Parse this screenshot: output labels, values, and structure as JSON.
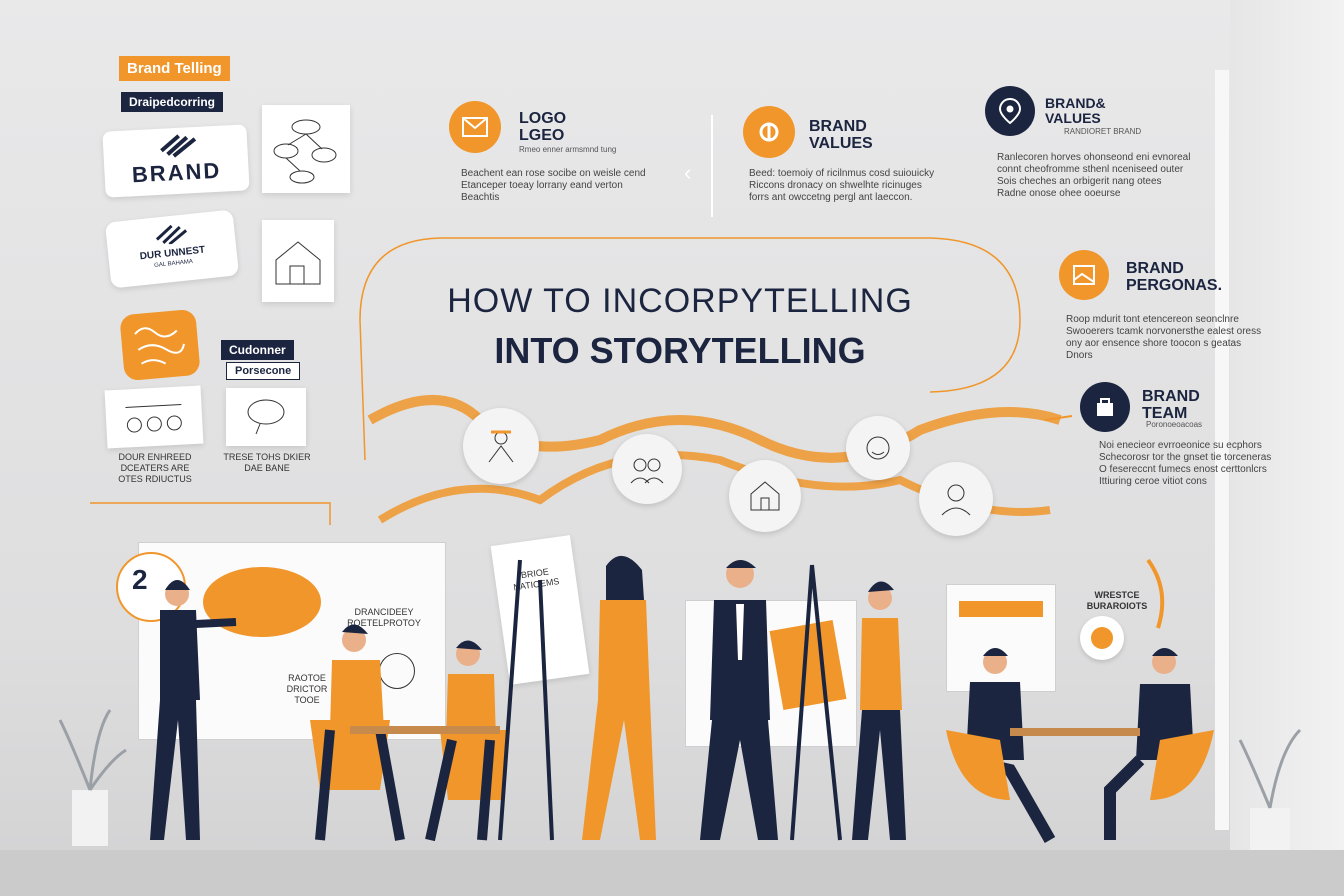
{
  "left_panel": {
    "tag_brand_telling": "Brand Telling",
    "tag_sub": "Draipedcorring",
    "brand_card_text": "BRAND",
    "brand_card2_text": "DUR UNNEST",
    "brand_card2_sub": "GAL BAHAMA",
    "tag_customer": "Cudonner",
    "tag_persona": "Porsecone",
    "caption": "DOUR ENHREED\nDCEATERS ARE\nOTES RDIUCTUS",
    "caption2": "TRESE TOHS DKIER\nDAE BANE"
  },
  "features": {
    "logo": {
      "title": "LOGO\nLGEO",
      "subtitle": "Rmeo enner armsmnd tung",
      "body": "Beachent ean rose socibe on weisle cend\nEtanceper toeay lorrany eand verton\nBeachtis"
    },
    "values": {
      "title": "BRAND\nVALUES",
      "body": "Beed: toemoiy of ricilnmus cosd suiouicky\nRiccons dronacy on shwelhte ricinuges\nforrs ant owccetng pergl ant laeccon."
    },
    "brand_values_right": {
      "title": "BRAND&\nVALUES",
      "subtitle": "RANDIORET BRAND",
      "body": "Ranlecoren horves ohonseond eni evnoreal\nconnt cheofromme sthenl nceniseed outer\nSois cheches an orbigerit nang otees\nRadne onose ohee ooeurse"
    },
    "personas": {
      "title": "BRAND\nPERGONAS.",
      "body": "Roop mdurit tont etencereon seonclnre\nSwooerers tcamk norvonersthe ealest oress\nony aor ensence shore toocon s geatas\nDnors"
    },
    "team": {
      "title": "BRAND\nTEAM",
      "subtitle": "Poronoeoacoas",
      "body": "Noi enecieor evrroeonice su ecphors\nSchecorosr tor the gnset tie torceneras\nO fesereccnt fumecs enost certtonlcrs\nIttiuring ceroe vitiot cons"
    }
  },
  "headline": {
    "line1": "HOW TO INCORPYTELLING",
    "line2": "INTO STORYTELLING"
  },
  "scene": {
    "board_left_text": "RAOTOE\nDRICTOR\nTOOE",
    "board_center_text": "DRANCIDEEY\nROETELPROTOY",
    "easel_text": "BRIOE\nNATIOEMS",
    "right_board_text": "WRESTCE\nBURAROIOTS",
    "bubble_text": "2"
  },
  "colors": {
    "orange": "#f0962b",
    "navy": "#1c2540",
    "background": "#e3e3e4"
  }
}
